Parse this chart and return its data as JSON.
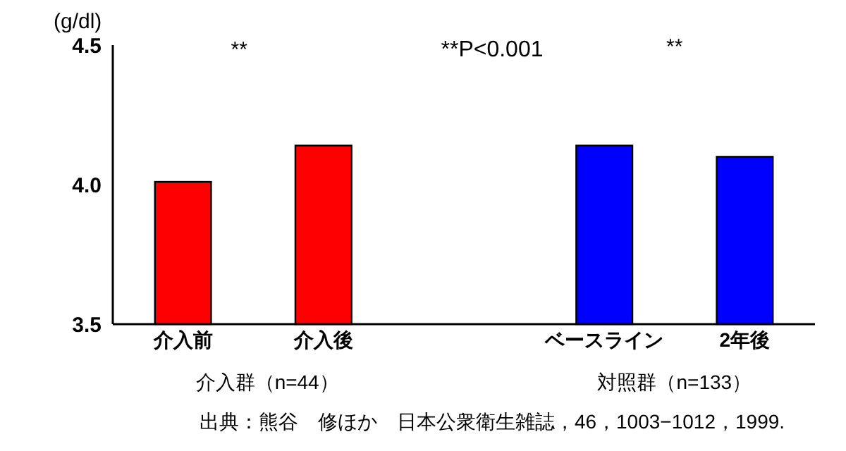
{
  "chart_data": {
    "type": "bar",
    "ylabel": "(g/dl)",
    "categories": [
      "介入前",
      "介入後",
      null,
      "ベースライン",
      "2年後"
    ],
    "values": [
      4.01,
      4.14,
      null,
      4.14,
      4.1
    ],
    "colors": [
      "#ff0000",
      "#ff0000",
      null,
      "#0000ff",
      "#0000ff"
    ],
    "ylim": [
      3.5,
      4.5
    ],
    "yticks": [
      {
        "value": 3.5,
        "label": "3.5"
      },
      {
        "value": 4,
        "label": "4.0"
      },
      {
        "value": 4.5,
        "label": "4.5"
      }
    ],
    "annotations": [
      "**",
      "**P<0.001",
      "**",
      "介入群（n=44）",
      "対照群（n=133）",
      "出典：熊谷　修ほか　日本公衆衛生雑誌，46，1003−1012，1999."
    ]
  }
}
